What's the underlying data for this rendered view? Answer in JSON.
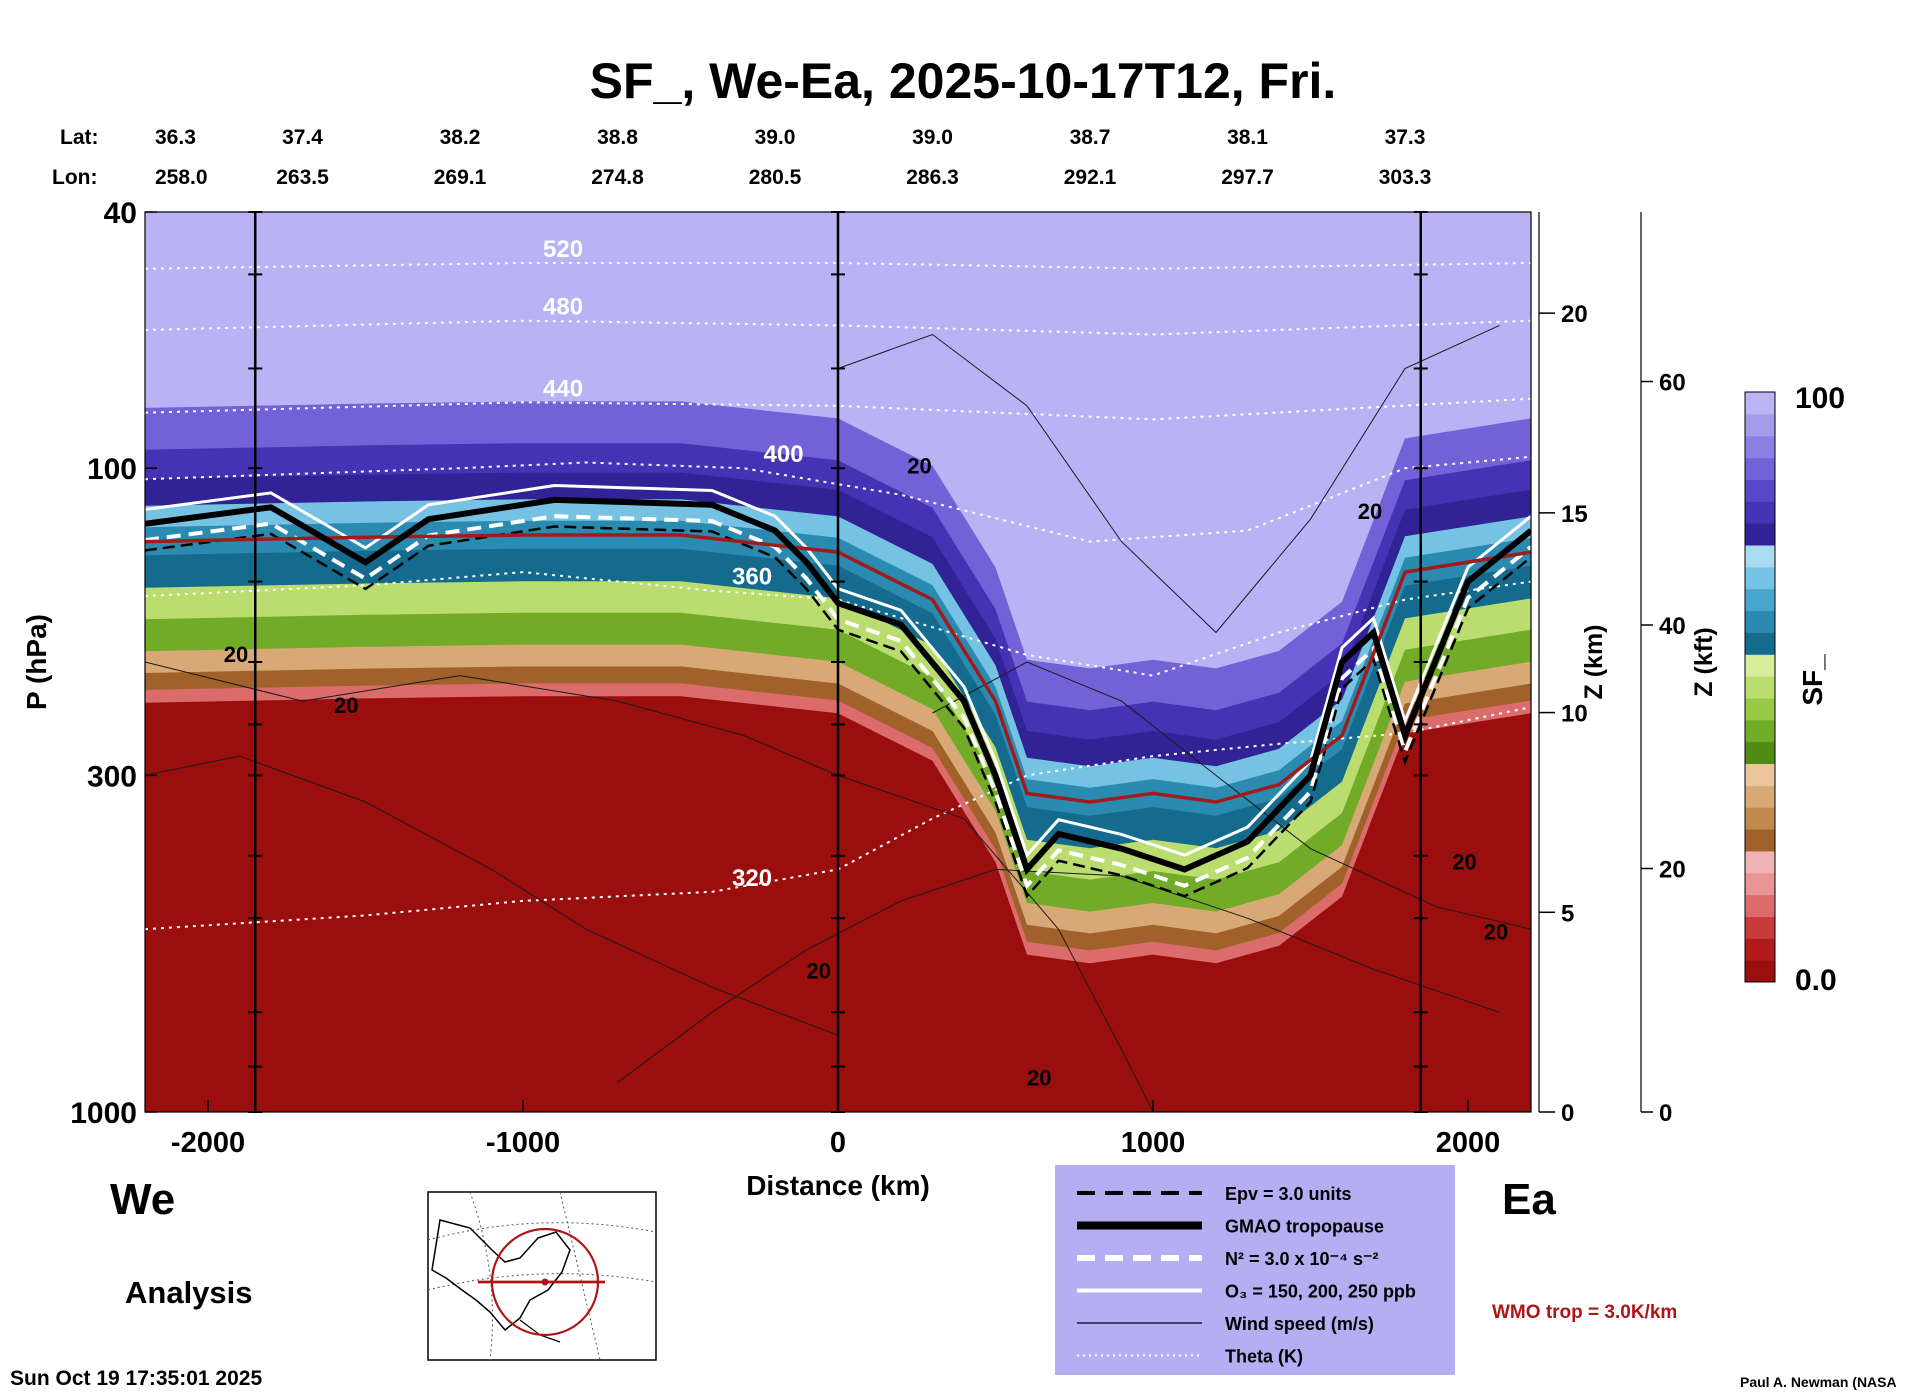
{
  "chart_data": {
    "type": "heatmap",
    "title": "SF_, We-Ea, 2025-10-17T12, Fri.",
    "xlabel": "Distance (km)",
    "ylabel": "P (hPa)",
    "xlim": [
      -2200,
      2200
    ],
    "ylim": [
      1000,
      40
    ],
    "x_ticks": [
      -2000,
      -1000,
      0,
      1000,
      2000
    ],
    "x_tick_labels": [
      "-2000",
      "-1000",
      "0",
      "1000",
      "2000"
    ],
    "y_ticks": [
      40,
      100,
      300,
      1000
    ],
    "y_tick_labels": [
      "40",
      "100",
      "300",
      "1000"
    ],
    "z_km_axis": {
      "label": "Z (km)",
      "ticks": [
        0,
        5,
        10,
        15,
        20
      ],
      "tick_labels": [
        "0",
        "5",
        "10",
        "15",
        "20"
      ]
    },
    "z_kft_axis": {
      "label": "Z (kft)",
      "ticks": [
        0,
        20,
        40,
        60
      ],
      "tick_labels": [
        "0",
        "20",
        "40",
        "60"
      ]
    },
    "colorbar": {
      "label": "SF_",
      "min": 0.0,
      "max": 100,
      "min_label": "0.0",
      "max_label": "100",
      "colors": [
        "#9a0e0e",
        "#b01a1a",
        "#c83b3b",
        "#dc6c6c",
        "#e99595",
        "#f1b4b4",
        "#a0622a",
        "#bf8a4c",
        "#d9a877",
        "#ebc59b",
        "#4f8a12",
        "#72ab28",
        "#97c846",
        "#bbdd70",
        "#d6ee9a",
        "#156b8e",
        "#2b8ab0",
        "#48a6cd",
        "#76c2e2",
        "#a7dcf1",
        "#312296",
        "#4532b4",
        "#5b47c9",
        "#7361d8",
        "#8c7fe3",
        "#a69cec",
        "#bcb5f4"
      ]
    },
    "lat_lon": {
      "lat_header": "Lat:",
      "lon_header": "Lon:",
      "distance_km": [
        -2200,
        -1700,
        -1200,
        -700,
        -200,
        300,
        800,
        1300,
        1800
      ],
      "lat": [
        "36.3",
        "37.4",
        "38.2",
        "38.8",
        "39.0",
        "39.0",
        "38.7",
        "38.1",
        "37.3"
      ],
      "lon": [
        "258.0",
        "263.5",
        "269.1",
        "274.8",
        "280.5",
        "286.3",
        "292.1",
        "297.7",
        "303.3"
      ]
    },
    "vertical_markers_km": [
      -1850,
      0,
      1850
    ],
    "theta_contours_K": [
      {
        "value": 320,
        "label": "320",
        "points": [
          [
            -2200,
            520
          ],
          [
            -1500,
            495
          ],
          [
            -1000,
            470
          ],
          [
            -400,
            455
          ],
          [
            0,
            420
          ],
          [
            300,
            350
          ],
          [
            600,
            300
          ],
          [
            1000,
            280
          ],
          [
            1400,
            268
          ],
          [
            1800,
            258
          ],
          [
            2200,
            235
          ]
        ]
      },
      {
        "value": 360,
        "label": "360",
        "points": [
          [
            -2200,
            158
          ],
          [
            -1500,
            152
          ],
          [
            -1000,
            145
          ],
          [
            -400,
            155
          ],
          [
            0,
            160
          ],
          [
            600,
            195
          ],
          [
            1000,
            210
          ],
          [
            1400,
            180
          ],
          [
            1800,
            160
          ],
          [
            2200,
            150
          ]
        ]
      },
      {
        "value": 400,
        "label": "400",
        "points": [
          [
            -2200,
            104
          ],
          [
            -1200,
            100
          ],
          [
            -800,
            98
          ],
          [
            -300,
            100
          ],
          [
            200,
            110
          ],
          [
            800,
            130
          ],
          [
            1300,
            125
          ],
          [
            1800,
            100
          ],
          [
            2200,
            96
          ]
        ]
      },
      {
        "value": 440,
        "label": "440",
        "points": [
          [
            -2200,
            82
          ],
          [
            -1000,
            79
          ],
          [
            0,
            80
          ],
          [
            1000,
            84
          ],
          [
            2200,
            78
          ]
        ]
      },
      {
        "value": 480,
        "label": "480",
        "points": [
          [
            -2200,
            61
          ],
          [
            -1000,
            59
          ],
          [
            0,
            60
          ],
          [
            1000,
            62
          ],
          [
            2200,
            59
          ]
        ]
      },
      {
        "value": 520,
        "label": "520",
        "points": [
          [
            -2200,
            49
          ],
          [
            -1000,
            48
          ],
          [
            0,
            48
          ],
          [
            1000,
            49
          ],
          [
            2200,
            48
          ]
        ]
      }
    ],
    "tropopause": {
      "gmao_hPa": [
        [
          -2200,
          122
        ],
        [
          -1800,
          115
        ],
        [
          -1500,
          140
        ],
        [
          -1300,
          120
        ],
        [
          -900,
          112
        ],
        [
          -400,
          114
        ],
        [
          -200,
          125
        ],
        [
          -100,
          140
        ],
        [
          0,
          162
        ],
        [
          200,
          175
        ],
        [
          400,
          230
        ],
        [
          500,
          300
        ],
        [
          600,
          420
        ],
        [
          700,
          370
        ],
        [
          900,
          390
        ],
        [
          1100,
          420
        ],
        [
          1300,
          380
        ],
        [
          1500,
          300
        ],
        [
          1600,
          200
        ],
        [
          1700,
          180
        ],
        [
          1800,
          260
        ],
        [
          2000,
          150
        ],
        [
          2200,
          125
        ]
      ],
      "wmo_hPa": [
        [
          -2200,
          130
        ],
        [
          -1500,
          128
        ],
        [
          -1000,
          127
        ],
        [
          -500,
          127
        ],
        [
          0,
          135
        ],
        [
          300,
          160
        ],
        [
          500,
          230
        ],
        [
          600,
          320
        ],
        [
          800,
          330
        ],
        [
          1000,
          320
        ],
        [
          1200,
          330
        ],
        [
          1400,
          310
        ],
        [
          1600,
          260
        ],
        [
          1800,
          145
        ],
        [
          2200,
          135
        ]
      ]
    },
    "wind_label": "20",
    "annotations": {
      "west": "We",
      "east": "Ea",
      "analysis": "Analysis",
      "wmo_trop": "WMO trop = 3.0K/km",
      "timestamp": "Sun Oct 19 17:35:01 2025",
      "credit": "Paul A. Newman (NASA"
    },
    "legend": {
      "position": "bottom-center",
      "entries": [
        {
          "style": "dashed-black",
          "label": "Epv = 3.0 units"
        },
        {
          "style": "thick-black",
          "label": "GMAO tropopause"
        },
        {
          "style": "dashed-white",
          "label": "N² = 3.0 x 10⁻⁴ s⁻²"
        },
        {
          "style": "solid-white",
          "label": "O₃ = 150, 200, 250 ppb"
        },
        {
          "style": "thin-black",
          "label": "Wind speed (m/s)"
        },
        {
          "style": "dotted-white",
          "label": "Theta (K)"
        }
      ]
    },
    "colors": {
      "stratosphere_top": "#b9b3f5",
      "troposphere": "#9a0e0e",
      "legend_bg": "#b5aef3",
      "wmo_line": "#a01c1c",
      "wmo_text": "#b01515"
    }
  }
}
